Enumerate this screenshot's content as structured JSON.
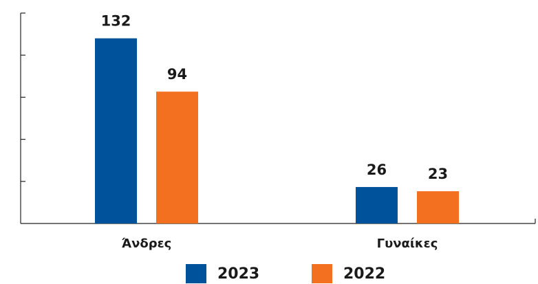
{
  "chart_data": {
    "type": "bar",
    "categories": [
      "Άνδρες",
      "Γυναίκες"
    ],
    "series": [
      {
        "name": "2023",
        "color": "#00529b",
        "values": [
          132,
          26
        ]
      },
      {
        "name": "2022",
        "color": "#f37021",
        "values": [
          94,
          23
        ]
      }
    ],
    "ylim": [
      0,
      150
    ],
    "yticks": [
      30,
      60,
      90,
      120,
      150
    ]
  }
}
